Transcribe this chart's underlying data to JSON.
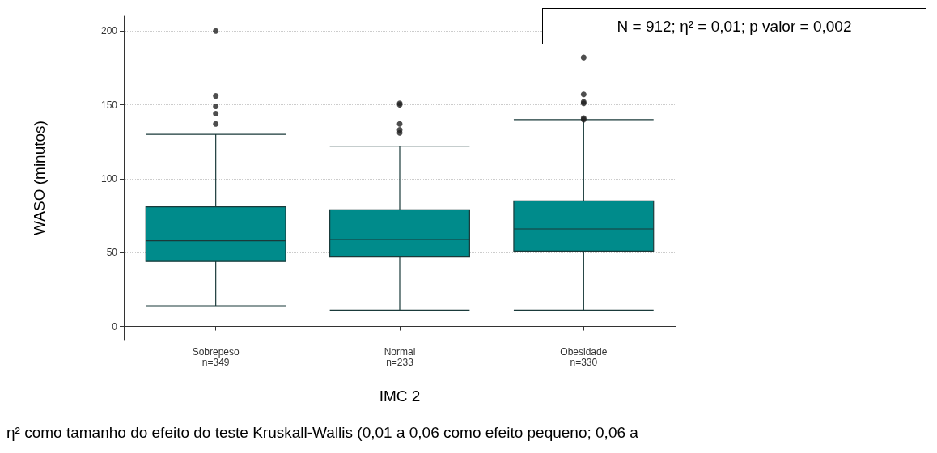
{
  "chart_data": {
    "type": "box",
    "xlabel": "IMC 2",
    "ylabel": "WASO (minutos)",
    "categories": [
      "Sobrepeso\nn=349",
      "Normal\nn=233",
      "Obesidade\nn=330"
    ],
    "boxes": [
      {
        "low": 14,
        "q1": 44,
        "median": 58,
        "q3": 81,
        "high": 130,
        "outliers": [
          200,
          156,
          149,
          144,
          137
        ]
      },
      {
        "low": 11,
        "q1": 47,
        "median": 59,
        "q3": 79,
        "high": 122,
        "outliers": [
          151,
          150,
          137,
          133,
          131
        ]
      },
      {
        "low": 11,
        "q1": 51,
        "median": 66,
        "q3": 85,
        "high": 140,
        "outliers": [
          182,
          157,
          152,
          151,
          141,
          140
        ]
      }
    ],
    "color": "#008b8b",
    "ylim": [
      -9,
      210
    ],
    "yticks": [
      0,
      50,
      100,
      150,
      200
    ],
    "grid": "y",
    "annotations": [
      "N = 912; η² = 0,01; p valor = 0,002",
      "η² como tamanho do efeito do teste Kruskall-Wallis (0,01 a 0,06 como efeito pequeno; 0,06 a"
    ]
  }
}
